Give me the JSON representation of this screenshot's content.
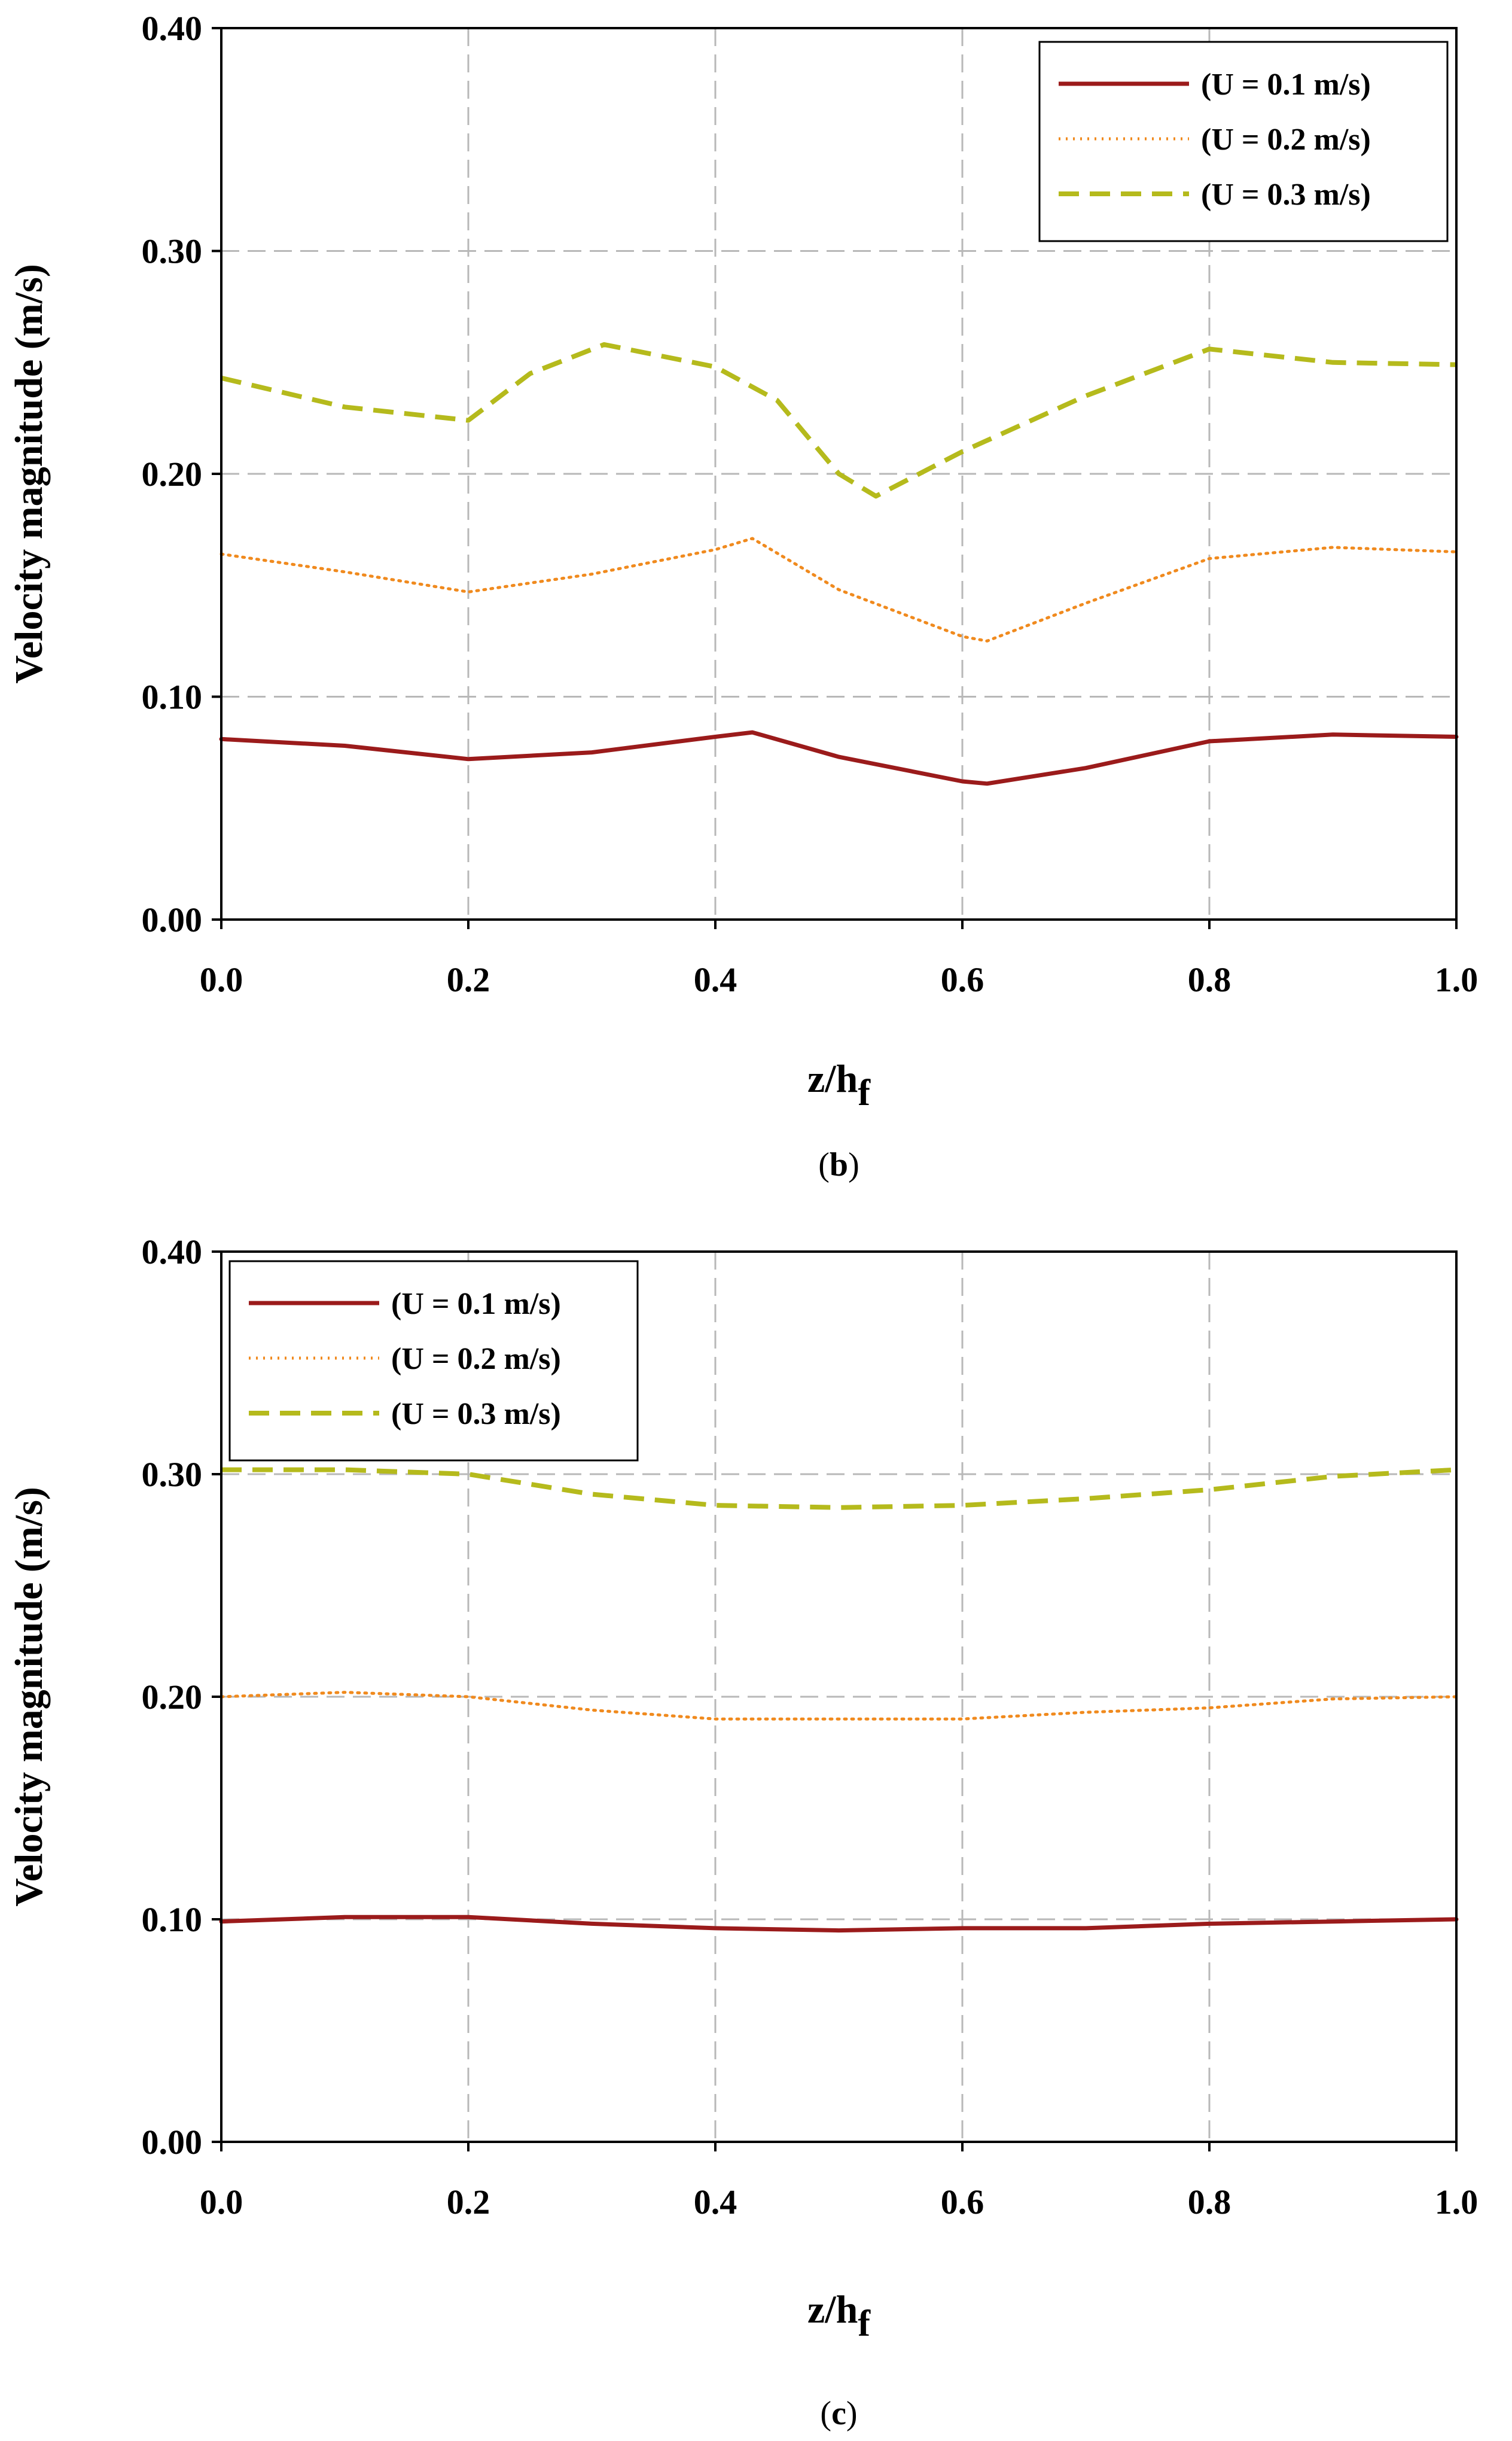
{
  "chart_data": [
    {
      "type": "line",
      "caption_open": "(",
      "caption_letter": "b",
      "caption_close": ")",
      "xlabel_main": "z/h",
      "xlabel_sub": "f",
      "ylabel": "Velocity magnitude (m/s)",
      "xlim": [
        0,
        1.0
      ],
      "ylim": [
        0,
        0.4
      ],
      "xticks": [
        "0.0",
        "0.2",
        "0.4",
        "0.6",
        "0.8",
        "1.0"
      ],
      "yticks": [
        "0.00",
        "0.10",
        "0.20",
        "0.30",
        "0.40"
      ],
      "grid": true,
      "legend_position": "top-right",
      "series": [
        {
          "name": "(U = 0.1 m/s)",
          "color": "#9B1B1B",
          "style": "solid",
          "x": [
            0.0,
            0.1,
            0.2,
            0.3,
            0.4,
            0.43,
            0.5,
            0.6,
            0.62,
            0.7,
            0.8,
            0.9,
            1.0
          ],
          "y": [
            0.081,
            0.078,
            0.072,
            0.075,
            0.082,
            0.084,
            0.073,
            0.062,
            0.061,
            0.068,
            0.08,
            0.083,
            0.082
          ]
        },
        {
          "name": "(U = 0.2 m/s)",
          "color": "#F08A1E",
          "style": "dotted",
          "x": [
            0.0,
            0.1,
            0.2,
            0.3,
            0.4,
            0.43,
            0.5,
            0.6,
            0.62,
            0.7,
            0.8,
            0.9,
            1.0
          ],
          "y": [
            0.164,
            0.156,
            0.147,
            0.155,
            0.166,
            0.171,
            0.148,
            0.127,
            0.125,
            0.142,
            0.162,
            0.167,
            0.165
          ]
        },
        {
          "name": "(U = 0.3 m/s)",
          "color": "#B5BA1C",
          "style": "dashed",
          "x": [
            0.0,
            0.1,
            0.2,
            0.25,
            0.31,
            0.4,
            0.45,
            0.5,
            0.53,
            0.6,
            0.7,
            0.8,
            0.9,
            1.0
          ],
          "y": [
            0.243,
            0.23,
            0.224,
            0.245,
            0.258,
            0.248,
            0.233,
            0.2,
            0.19,
            0.21,
            0.235,
            0.256,
            0.25,
            0.249
          ]
        }
      ]
    },
    {
      "type": "line",
      "caption_open": "(",
      "caption_letter": "c",
      "caption_close": ")",
      "xlabel_main": "z/h",
      "xlabel_sub": "f",
      "ylabel": "Velocity magnitude (m/s)",
      "xlim": [
        0,
        1.0
      ],
      "ylim": [
        0,
        0.4
      ],
      "xticks": [
        "0.0",
        "0.2",
        "0.4",
        "0.6",
        "0.8",
        "1.0"
      ],
      "yticks": [
        "0.00",
        "0.10",
        "0.20",
        "0.30",
        "0.40"
      ],
      "grid": true,
      "legend_position": "top-left",
      "series": [
        {
          "name": "(U = 0.1 m/s)",
          "color": "#9B1B1B",
          "style": "solid",
          "x": [
            0.0,
            0.1,
            0.2,
            0.3,
            0.4,
            0.5,
            0.6,
            0.7,
            0.8,
            0.9,
            1.0
          ],
          "y": [
            0.099,
            0.101,
            0.101,
            0.098,
            0.096,
            0.095,
            0.096,
            0.096,
            0.098,
            0.099,
            0.1
          ]
        },
        {
          "name": "(U = 0.2 m/s)",
          "color": "#F08A1E",
          "style": "dotted",
          "x": [
            0.0,
            0.1,
            0.2,
            0.3,
            0.4,
            0.5,
            0.6,
            0.7,
            0.8,
            0.9,
            1.0
          ],
          "y": [
            0.2,
            0.202,
            0.2,
            0.194,
            0.19,
            0.19,
            0.19,
            0.193,
            0.195,
            0.199,
            0.2
          ]
        },
        {
          "name": "(U = 0.3 m/s)",
          "color": "#B5BA1C",
          "style": "dashed",
          "x": [
            0.0,
            0.1,
            0.2,
            0.3,
            0.4,
            0.5,
            0.6,
            0.7,
            0.8,
            0.9,
            1.0
          ],
          "y": [
            0.302,
            0.302,
            0.3,
            0.291,
            0.286,
            0.285,
            0.286,
            0.289,
            0.293,
            0.299,
            0.302
          ]
        }
      ]
    }
  ]
}
